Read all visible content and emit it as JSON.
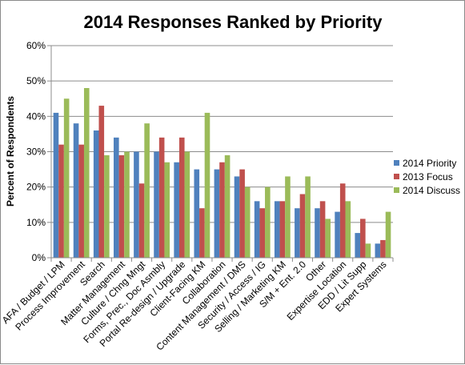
{
  "chart_data": {
    "type": "bar",
    "title": "2014 Responses Ranked by Priority",
    "ylabel": "Percent of Respondents",
    "xlabel": "",
    "ylim": [
      0,
      60
    ],
    "yticks": [
      "0%",
      "10%",
      "20%",
      "30%",
      "40%",
      "50%",
      "60%"
    ],
    "grid": true,
    "legend_position": "right",
    "categories": [
      "AFA / Budget / LPM",
      "Process Improvement",
      "Search",
      "Matter Management",
      "Culture / Chng Mngt",
      "Forms, Prec., Doc Asmbly",
      "Portal Re-design / Upgrade",
      "Client-Facing KM",
      "Collaboration",
      "Content Management / DMS",
      "Security / Access / IG",
      "Selling / Marketing KM",
      "S/M + Ent. 2.0",
      "Other",
      "Expertise Location",
      "EDD / Lit Supp",
      "Expert Systems"
    ],
    "series": [
      {
        "name": "2014 Priority",
        "color": "#4f81bd",
        "values": [
          41,
          38,
          36,
          34,
          30,
          30,
          27,
          25,
          25,
          23,
          16,
          16,
          14,
          14,
          13,
          7,
          4
        ]
      },
      {
        "name": "2013 Focus",
        "color": "#c0504d",
        "values": [
          32,
          32,
          43,
          29,
          21,
          34,
          34,
          14,
          27,
          25,
          14,
          16,
          18,
          16,
          21,
          11,
          5
        ]
      },
      {
        "name": "2014 Discuss",
        "color": "#9bbb59",
        "values": [
          45,
          48,
          29,
          30,
          38,
          27,
          30,
          41,
          29,
          20,
          20,
          23,
          23,
          11,
          16,
          4,
          13
        ]
      }
    ]
  }
}
